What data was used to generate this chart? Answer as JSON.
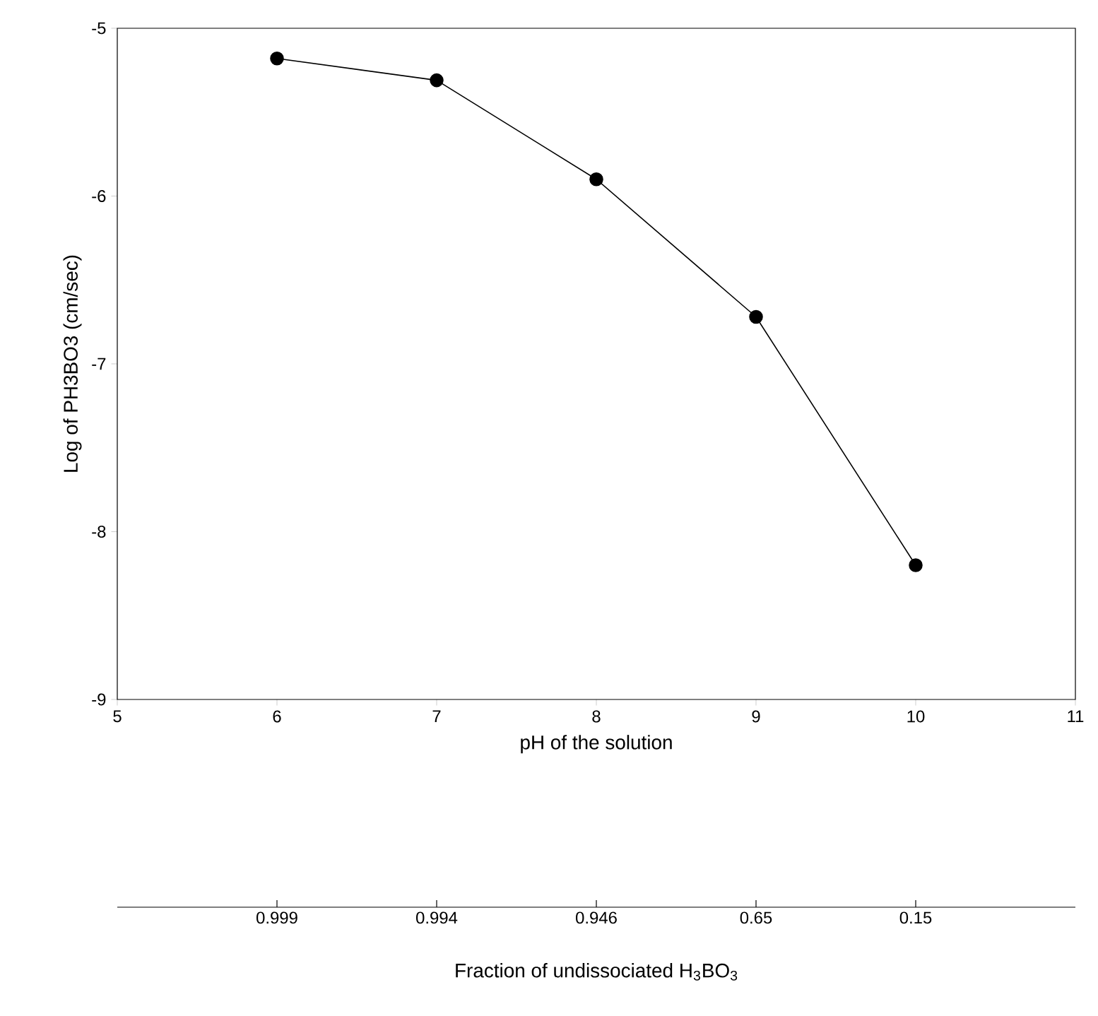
{
  "chart_data": {
    "type": "line",
    "xlabel": "pH of the solution",
    "ylabel": "Log of PH3BO3 (cm/sec)",
    "x": [
      6,
      7,
      8,
      9,
      10
    ],
    "series": [
      {
        "color": "#000000",
        "values": [
          -5.18,
          -5.31,
          -5.9,
          -6.72,
          -8.2
        ]
      }
    ],
    "marker": "circle",
    "line_style": "solid",
    "xlim": [
      5,
      11
    ],
    "xticks": [
      5,
      6,
      7,
      8,
      9,
      10,
      11
    ],
    "ylim": [
      -9,
      -5
    ],
    "yticks": [
      -9,
      -8,
      -7,
      -6,
      -5
    ],
    "annotations": [
      "0.999",
      "0.994",
      "0.946",
      "0.65",
      "0.15"
    ],
    "x2label": "Fraction of undissociated H$_{3}$BO$_{3}$"
  }
}
